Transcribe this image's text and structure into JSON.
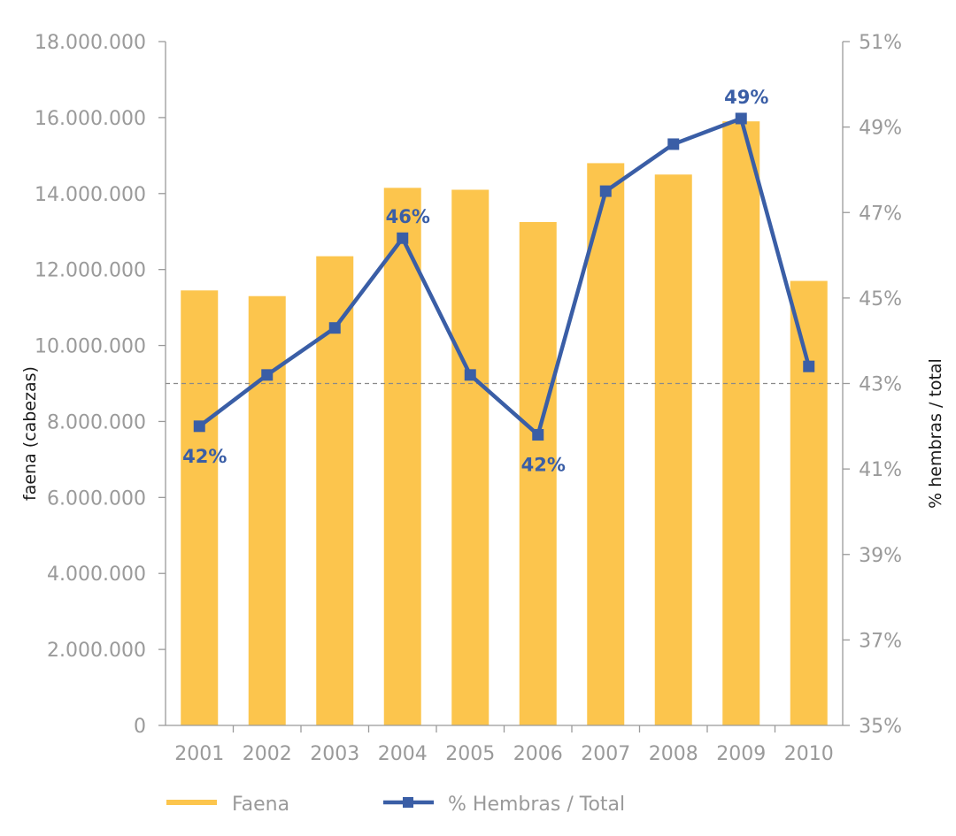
{
  "chart_data": {
    "type": "bar",
    "categories": [
      "2001",
      "2002",
      "2003",
      "2004",
      "2005",
      "2006",
      "2007",
      "2008",
      "2009",
      "2010"
    ],
    "series": [
      {
        "name": "Faena",
        "type": "bar",
        "axis": "left",
        "color": "#fcc54d",
        "values": [
          11450000,
          11300000,
          12350000,
          14150000,
          14100000,
          13250000,
          14800000,
          14500000,
          15900000,
          11700000
        ]
      },
      {
        "name": "% Hembras / Total",
        "type": "line",
        "axis": "right",
        "color": "#3a5ea6",
        "marker": "square",
        "values": [
          42.0,
          43.2,
          44.3,
          46.4,
          43.2,
          41.8,
          47.5,
          48.6,
          49.2,
          43.4
        ]
      }
    ],
    "ylabel_left": "faena (cabezas)",
    "ylabel_right": "% hembras / total",
    "ylim_left": [
      0,
      18000000
    ],
    "ylim_right": [
      35,
      51
    ],
    "left_ticks": [
      "0",
      "2.000.000",
      "4.000.000",
      "6.000.000",
      "8.000.000",
      "10.000.000",
      "12.000.000",
      "14.000.000",
      "16.000.000",
      "18.000.000"
    ],
    "right_ticks": [
      "35%",
      "37%",
      "39%",
      "41%",
      "43%",
      "45%",
      "47%",
      "49%",
      "51%"
    ],
    "reference_line": {
      "axis": "right",
      "value": 43,
      "style": "dashed"
    },
    "point_labels": [
      {
        "index": 0,
        "text": "42%",
        "position": "below"
      },
      {
        "index": 3,
        "text": "46%",
        "position": "above"
      },
      {
        "index": 5,
        "text": "42%",
        "position": "below"
      },
      {
        "index": 8,
        "text": "49%",
        "position": "above"
      }
    ],
    "legend": {
      "placement": "bottom",
      "items": [
        {
          "label": "Faena",
          "kind": "bar"
        },
        {
          "label": "% Hembras / Total",
          "kind": "line"
        }
      ]
    },
    "grid": false
  }
}
